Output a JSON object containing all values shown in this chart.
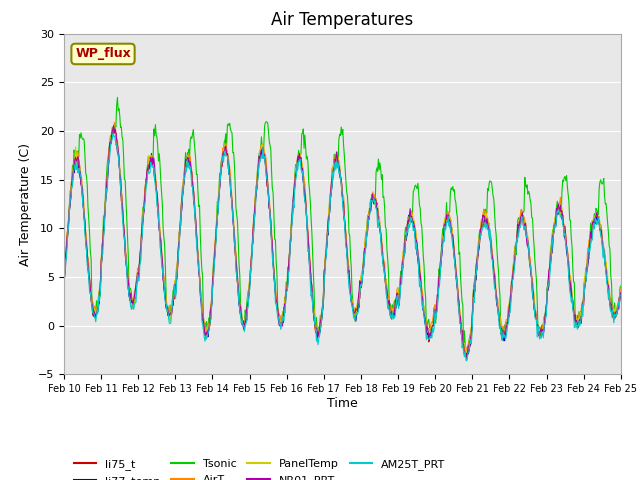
{
  "title": "Air Temperatures",
  "xlabel": "Time",
  "ylabel": "Air Temperature (C)",
  "ylim": [
    -5,
    30
  ],
  "yticks": [
    -5,
    0,
    5,
    10,
    15,
    20,
    25,
    30
  ],
  "date_labels": [
    "Feb 10",
    "Feb 11",
    "Feb 12",
    "Feb 13",
    "Feb 14",
    "Feb 15",
    "Feb 16",
    "Feb 17",
    "Feb 18",
    "Feb 19",
    "Feb 20",
    "Feb 21",
    "Feb 22",
    "Feb 23",
    "Feb 24",
    "Feb 25"
  ],
  "series_colors": {
    "li75_t": "#cc0000",
    "li77_temp": "#0000cc",
    "Tsonic": "#00cc00",
    "AirT": "#ff8800",
    "PanelTemp": "#cccc00",
    "NR01_PRT": "#aa00aa",
    "AM25T_PRT": "#00cccc"
  },
  "legend_label": "WP_flux",
  "plot_bg_color": "#e8e8e8",
  "title_fontsize": 12,
  "axis_fontsize": 9,
  "legend_box_color": "#ffffcc",
  "legend_text_color": "#aa0000"
}
